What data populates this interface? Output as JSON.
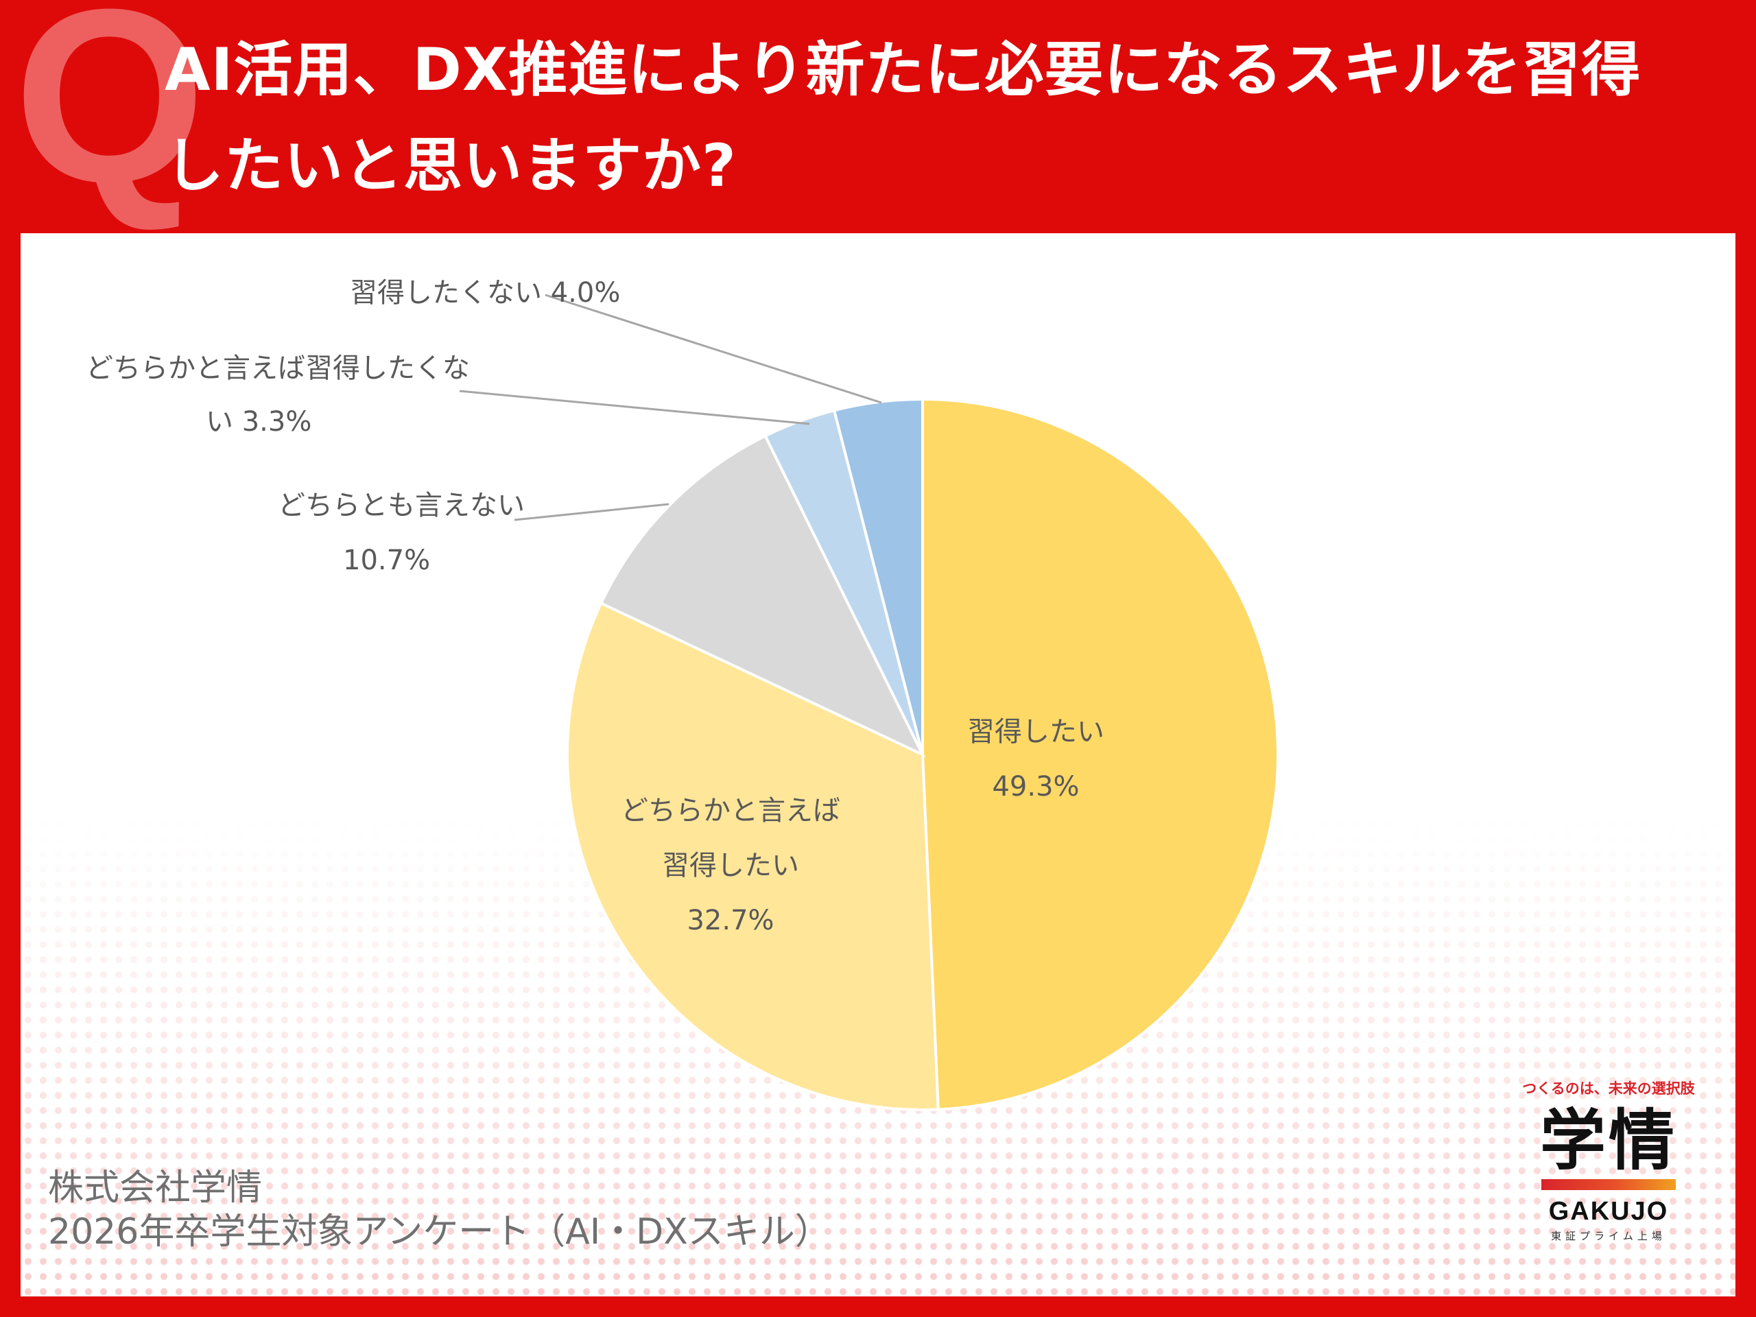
{
  "title": {
    "mark": "Q",
    "line1": "AI活用、DX推進により新たに必要になるスキルを習得",
    "line2": "したいと思いますか?"
  },
  "chart_data": {
    "type": "pie",
    "title": "AI活用、DX推進により新たに必要になるスキルを習得したいと思いますか?",
    "slices": [
      {
        "label": "習得したい",
        "value": 49.3,
        "value_label": "49.3%",
        "color": "#ffd966"
      },
      {
        "label": "どちらかと言えば習得したい",
        "value": 32.7,
        "value_label": "32.7%",
        "color": "#ffe699"
      },
      {
        "label": "どちらとも言えない",
        "value": 10.7,
        "value_label": "10.7%",
        "color": "#d9d9d9"
      },
      {
        "label": "どちらかと言えば習得したくない",
        "value": 3.3,
        "value_label": "3.3%",
        "color": "#bdd7ee"
      },
      {
        "label": "習得したくない",
        "value": 4.0,
        "value_label": "4.0%",
        "color": "#9dc3e6"
      }
    ],
    "labels": {
      "s0": [
        "習得したい",
        "49.3%"
      ],
      "s1": [
        "どちらかと言えば",
        "習得したい",
        "32.7%"
      ],
      "s2": [
        "どちらとも言えない",
        "10.7%"
      ],
      "s3": [
        "どちらかと言えば習得したくな",
        "い 3.3%"
      ],
      "s4": [
        "習得したくない 4.0%"
      ]
    },
    "legend": "none"
  },
  "footer": {
    "company": "株式会社学情",
    "survey": "2026年卒学生対象アンケート（AI・DXスキル）"
  },
  "logo": {
    "tagline": "つくるのは、未来の選択肢",
    "kanji": "学情",
    "name": "GAKUJO",
    "sub": "東証プライム上場"
  }
}
